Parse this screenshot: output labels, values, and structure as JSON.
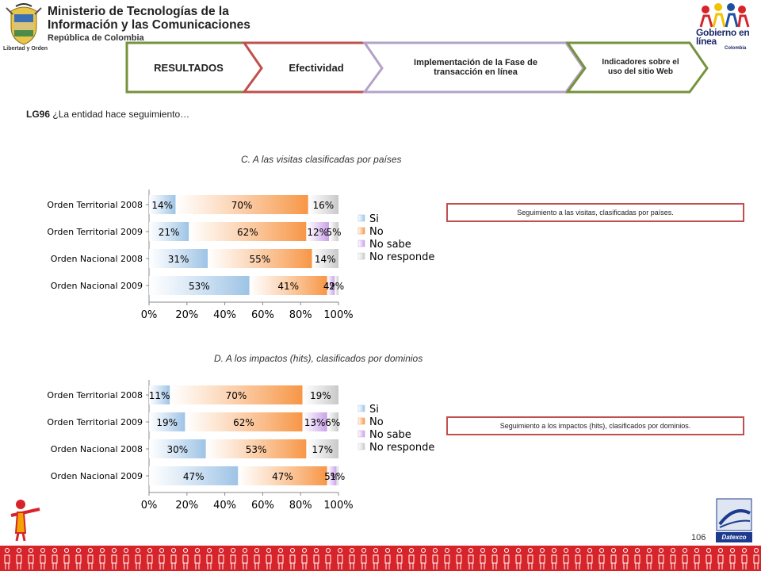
{
  "header": {
    "ministry_line1": "Ministerio de Tecnologías de la",
    "ministry_line2": "Información y las Comunicaciones",
    "ministry_sub": "República de Colombia",
    "motto": "Libertad y Orden",
    "gel_line1": "Gobierno en línea",
    "gel_country": "Colombia"
  },
  "breadcrumbs": [
    {
      "label": "RESULTADOS",
      "border": "#76923c"
    },
    {
      "label": "Efectividad",
      "border": "#c0504d"
    },
    {
      "label": "Implementación de la Fase de transacción en línea",
      "border": "#b3a2c7"
    },
    {
      "label": "Indicadores sobre el uso del sitio Web",
      "border": "#76923c"
    }
  ],
  "question": {
    "code": "LG96",
    "text": "¿La entidad hace seguimiento…"
  },
  "callouts": {
    "c": "Seguimiento a las visitas, clasificadas por países.",
    "d": "Seguimiento a los impactos (hits), clasificados por dominios."
  },
  "colors": {
    "si": "#9dc3e6",
    "no": "#f79646",
    "nosabe": "#c9a0e8",
    "noresponde": "#c8c8c8",
    "footer": "#d7242a"
  },
  "chart_data": [
    {
      "type": "bar",
      "orientation": "horizontal-stacked-percent",
      "title": "C. A las visitas clasificadas por países",
      "categories": [
        "Orden Territorial 2008",
        "Orden Territorial 2009",
        "Orden Nacional 2008",
        "Orden Nacional 2009"
      ],
      "series": [
        {
          "name": "Si",
          "values": [
            14,
            21,
            31,
            53
          ],
          "labels": [
            "14%",
            "21%",
            "31%",
            "53%"
          ]
        },
        {
          "name": "No",
          "values": [
            70,
            62,
            55,
            41
          ],
          "labels": [
            "70%",
            "62%",
            "55%",
            "41%"
          ]
        },
        {
          "name": "No sabe",
          "values": [
            0,
            12,
            0,
            4
          ],
          "labels": [
            "",
            "12%",
            "",
            "4%"
          ]
        },
        {
          "name": "No responde",
          "values": [
            16,
            5,
            14,
            2
          ],
          "labels": [
            "16%",
            "5%",
            "14%",
            "2%"
          ]
        }
      ],
      "xticks": [
        "0%",
        "20%",
        "40%",
        "60%",
        "80%",
        "100%"
      ],
      "xlim": [
        0,
        100
      ],
      "legend": "right"
    },
    {
      "type": "bar",
      "orientation": "horizontal-stacked-percent",
      "title": "D.  A los impactos (hits), clasificados por dominios",
      "categories": [
        "Orden Territorial 2008",
        "Orden Territorial 2009",
        "Orden Nacional 2008",
        "Orden Nacional 2009"
      ],
      "series": [
        {
          "name": "Si",
          "values": [
            11,
            19,
            30,
            47
          ],
          "labels": [
            "11%",
            "19%",
            "30%",
            "47%"
          ]
        },
        {
          "name": "No",
          "values": [
            70,
            62,
            53,
            47
          ],
          "labels": [
            "70%",
            "62%",
            "53%",
            "47%"
          ]
        },
        {
          "name": "No sabe",
          "values": [
            0,
            13,
            0,
            5
          ],
          "labels": [
            "",
            "13%",
            "",
            "5%"
          ]
        },
        {
          "name": "No responde",
          "values": [
            19,
            6,
            17,
            1
          ],
          "labels": [
            "19%",
            "6%",
            "17%",
            "1%"
          ]
        }
      ],
      "xticks": [
        "0%",
        "20%",
        "40%",
        "60%",
        "80%",
        "100%"
      ],
      "xlim": [
        0,
        100
      ],
      "legend": "right"
    }
  ],
  "footer": {
    "page_number": "106",
    "brand": "Datexco"
  }
}
